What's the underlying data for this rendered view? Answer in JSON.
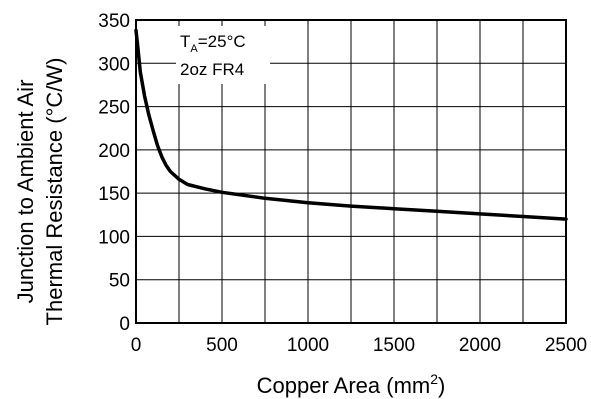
{
  "chart_data": {
    "type": "line",
    "title": "",
    "xlabel": "Copper Area (mm",
    "xlabel_sup": "2",
    "xlabel_close": ")",
    "ylabel_line1": "Junction to Ambient Air",
    "ylabel_line2": "Thermal Resistance (°C/W)",
    "xlim": [
      0,
      2500
    ],
    "ylim": [
      0,
      350
    ],
    "x_major_ticks": [
      0,
      500,
      1000,
      1500,
      2000,
      2500
    ],
    "x_grid_step": 250,
    "y_ticks": [
      0,
      50,
      100,
      150,
      200,
      250,
      300,
      350
    ],
    "grid": true,
    "series": [
      {
        "x": [
          0,
          10,
          25,
          50,
          75,
          100,
          125,
          150,
          175,
          200,
          250,
          300,
          400,
          500,
          750,
          1000,
          1250,
          1500,
          1750,
          2000,
          2250,
          2500
        ],
        "y": [
          338,
          320,
          290,
          262,
          240,
          222,
          205,
          192,
          182,
          175,
          166,
          160,
          155,
          151,
          144,
          139,
          135,
          132,
          129,
          126,
          123,
          120
        ]
      }
    ],
    "annotations": {
      "line1_main": "T",
      "line1_sub": "A",
      "line1_rest": "=25°C",
      "line2": "2oz FR4"
    }
  }
}
